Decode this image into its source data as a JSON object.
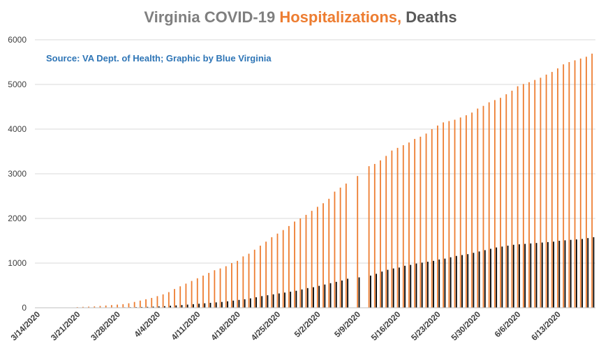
{
  "chart_data": {
    "type": "bar",
    "title_parts": [
      {
        "text": "Virginia COVID-19 ",
        "color": "#7f7f7f"
      },
      {
        "text": "Hospitalizations,",
        "color": "#ed7d31"
      },
      {
        "text": " Deaths",
        "color": "#595959"
      }
    ],
    "subtitle": "Source: VA Dept. of Health; Graphic by Blue Virginia",
    "subtitle_color": "#2e75b6",
    "xlabel": "",
    "ylabel": "",
    "ylim": [
      0,
      6000
    ],
    "y_ticks": [
      0,
      1000,
      2000,
      3000,
      4000,
      5000,
      6000
    ],
    "x_tick_labels": [
      "3/14/2020",
      "3/21/2020",
      "3/28/2020",
      "4/4/2020",
      "4/11/2020",
      "4/18/2020",
      "4/25/2020",
      "5/2/2020",
      "5/9/2020",
      "5/16/2020",
      "5/23/2020",
      "5/30/2020",
      "6/6/2020",
      "6/13/2020"
    ],
    "grid": true,
    "start_date": "2020-03-14",
    "series": [
      {
        "name": "Hospitalizations",
        "color": "#ed7d31",
        "values": [
          0,
          0,
          0,
          0,
          0,
          0,
          0,
          15,
          20,
          25,
          30,
          40,
          50,
          60,
          70,
          80,
          100,
          130,
          160,
          190,
          220,
          260,
          300,
          350,
          420,
          480,
          540,
          600,
          660,
          720,
          780,
          840,
          880,
          930,
          1000,
          1050,
          1150,
          1210,
          1300,
          1390,
          1480,
          1580,
          1660,
          1740,
          1830,
          1930,
          2000,
          2080,
          2170,
          2260,
          2340,
          2440,
          2600,
          2690,
          2780,
          null,
          2950,
          null,
          3170,
          3220,
          3300,
          3400,
          3520,
          3580,
          3640,
          3700,
          3780,
          3830,
          3900,
          4000,
          4080,
          4150,
          4180,
          4210,
          4260,
          4310,
          4370,
          4460,
          4520,
          4600,
          4650,
          4700,
          4780,
          4860,
          4960,
          5010,
          5050,
          5100,
          5150,
          5220,
          5280,
          5360,
          5450,
          5500,
          5540,
          5580,
          5620,
          5690
        ]
      },
      {
        "name": "Deaths",
        "color": "#000000",
        "values": [
          0,
          0,
          0,
          0,
          0,
          0,
          0,
          2,
          3,
          4,
          5,
          6,
          7,
          8,
          9,
          10,
          12,
          14,
          17,
          20,
          25,
          30,
          35,
          45,
          52,
          60,
          70,
          80,
          90,
          100,
          110,
          120,
          130,
          145,
          160,
          175,
          190,
          210,
          235,
          260,
          280,
          300,
          320,
          340,
          360,
          380,
          410,
          440,
          460,
          490,
          520,
          550,
          580,
          610,
          650,
          null,
          680,
          null,
          720,
          760,
          810,
          850,
          880,
          900,
          940,
          960,
          990,
          1010,
          1030,
          1050,
          1080,
          1100,
          1130,
          1160,
          1180,
          1200,
          1230,
          1260,
          1290,
          1320,
          1350,
          1370,
          1390,
          1410,
          1420,
          1430,
          1440,
          1450,
          1460,
          1470,
          1480,
          1500,
          1510,
          1520,
          1530,
          1540,
          1560,
          1580
        ]
      }
    ]
  }
}
